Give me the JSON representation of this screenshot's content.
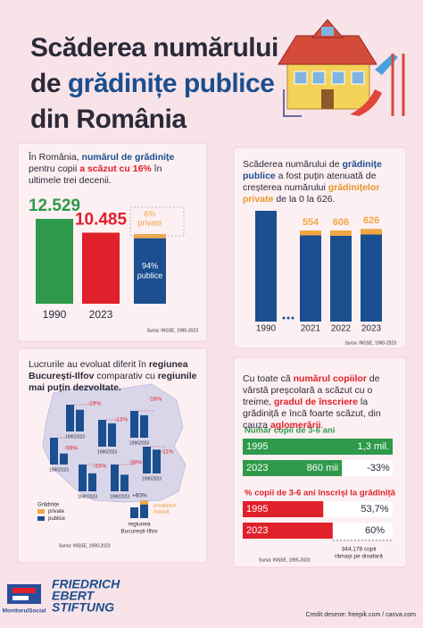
{
  "title": [
    "Scăderea numărului",
    "de ",
    "grădinițe publice",
    "din România"
  ],
  "texts": {
    "p1": [
      "În România, ",
      "numărul de grădinițe",
      " pentru copii ",
      "a scăzut cu 16%",
      " în ultimele trei decenii."
    ],
    "p2": [
      "Scăderea numărului de ",
      "grădinițe publice",
      " a fost puțin atenuată de creșterea numărului ",
      "grădinițelor private",
      " de la 0 la 626."
    ],
    "p3": [
      "Lucrurile au evoluat diferit în ",
      "regiunea București-Ilfov",
      " comparativ cu ",
      "regiunile mai puțin dezvoltate."
    ],
    "p4": [
      "Cu toate că ",
      "numărul copiilor",
      " de vârstă preșcolară a scăzut cu o treime, ",
      "gradul de înscriere",
      " la grădiniță e încă foarte scăzut, din cauza ",
      "aglomerării",
      "."
    ]
  },
  "chart_data": [
    {
      "type": "bar",
      "categories": [
        "1990",
        "2023"
      ],
      "values": [
        12529,
        10485
      ],
      "value_labels": [
        "12.529",
        "10.485"
      ],
      "colors": [
        "#2e9a4a",
        "#e0202a"
      ],
      "source": "Sursa: INSSE, 1990-2023"
    },
    {
      "type": "stacked-share",
      "series": [
        {
          "name": "publice",
          "color": "#1b4f8f",
          "values": [
            94
          ],
          "value_labels": [
            "94%"
          ]
        },
        {
          "name": "private",
          "color": "#f2a640",
          "values": [
            6
          ],
          "value_labels": [
            "6%"
          ]
        }
      ]
    },
    {
      "type": "stacked-bar",
      "categories": [
        "1990",
        "2021",
        "2022",
        "2023"
      ],
      "series": [
        {
          "color": "#1b4f8f",
          "values": [
            12529,
            9750,
            9700,
            9859
          ]
        },
        {
          "color": "#f2a640",
          "values": [
            null,
            554,
            606,
            626
          ]
        }
      ],
      "source": "Sursa: INSSE, 1990-2023"
    },
    {
      "type": "map-bars",
      "categories": [
        "1990",
        "2023"
      ],
      "color": "#1b4f8f",
      "change_color": "#e0202a",
      "regions": [
        {
          "change": -19,
          "label": "-19%"
        },
        {
          "change": -16,
          "label": "-16%"
        },
        {
          "change": -13,
          "label": "-13%"
        },
        {
          "change": -59,
          "label": "-59%"
        },
        {
          "change": -33,
          "label": "-33%"
        },
        {
          "change": -38,
          "label": "-38%"
        },
        {
          "change": -11,
          "label": "-11%"
        }
      ],
      "highlight": {
        "change": 60,
        "label": "+60%",
        "note": [
          "privatizare",
          "masivă"
        ],
        "caption": [
          "regiunea",
          "București-Ilfov"
        ]
      },
      "legend": {
        "title": "Grădinițe",
        "items": [
          {
            "name": "private",
            "color": "#f2a640"
          },
          {
            "name": "publice",
            "color": "#1b4f8f"
          }
        ]
      },
      "source": "Sursa: INSSE, 1990-2023"
    },
    {
      "type": "hbar",
      "title": "Număr copii de 3-6 ani",
      "categories": [
        "1995",
        "2023"
      ],
      "values": [
        1300000,
        860000
      ],
      "value_labels": [
        "1,3 mil.",
        "860 mii"
      ],
      "color": "#2e9a4a",
      "annotation": "-33%"
    },
    {
      "type": "hbar",
      "title": "% copii de 3-6 ani înscriși la grădiniță",
      "categories": [
        "1995",
        "2023"
      ],
      "values": [
        53.7,
        60
      ],
      "value_labels": [
        "53,7%",
        "60%"
      ],
      "xlim": [
        0,
        100
      ],
      "color": "#e0202a",
      "annotation": [
        "344.178 copii",
        "rămași pe dinafară"
      ],
      "source": "Sursa: INSSE, 1995-2023"
    }
  ],
  "footer": {
    "monitor": "MonitorulSocial",
    "fes": [
      "FRIEDRICH",
      "EBERT",
      "STIFTUNG"
    ],
    "credit": "Credit desene: freepik.com / canva.com"
  }
}
